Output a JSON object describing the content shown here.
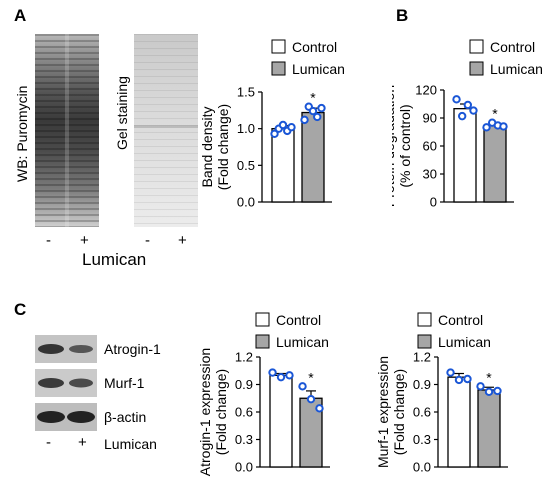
{
  "panels": {
    "A": {
      "letter": "A",
      "blot_label": "WB: Puromycin",
      "gel_label": "Gel staining",
      "lane_minus": "-",
      "lane_plus": "+",
      "treatment": "Lumican"
    },
    "B": {
      "letter": "B"
    },
    "C": {
      "letter": "C",
      "blots": [
        "Atrogin-1",
        "Murf-1",
        "β-actin"
      ],
      "lane_minus": "-",
      "lane_plus": "+",
      "treatment": "Lumican"
    }
  },
  "colors": {
    "control": "#ffffff",
    "lumican": "#a6a6a6",
    "points": "#1a56d6",
    "axis": "#000000"
  },
  "chart_data": [
    {
      "id": "band-density",
      "type": "bar",
      "categories": [
        "Control",
        "Lumican"
      ],
      "values": [
        1.0,
        1.22
      ],
      "errors": [
        0.04,
        0.06
      ],
      "points": [
        [
          0.93,
          1.0,
          1.05,
          0.97,
          1.02
        ],
        [
          1.12,
          1.3,
          1.24,
          1.16,
          1.28
        ]
      ],
      "significance": [
        "",
        "*"
      ],
      "ylabel_line1": "Band density",
      "ylabel_line2": "(Fold change)",
      "ylim": [
        0,
        1.5
      ],
      "yticks": [
        "0.0",
        "0.5",
        "1.0",
        "1.5"
      ],
      "legend": [
        "Control",
        "Lumican"
      ]
    },
    {
      "id": "protein-degradation",
      "type": "bar",
      "categories": [
        "Control",
        "Lumican"
      ],
      "values": [
        100,
        82
      ],
      "errors": [
        5,
        2
      ],
      "points": [
        [
          110,
          92,
          104,
          98
        ],
        [
          80,
          85,
          82,
          81
        ]
      ],
      "significance": [
        "",
        "*"
      ],
      "ylabel_line1": "Protein degradation",
      "ylabel_line2": "(% of control)",
      "ylim": [
        0,
        120
      ],
      "yticks": [
        "0",
        "30",
        "60",
        "90",
        "120"
      ],
      "legend": [
        "Control",
        "Lumican"
      ]
    },
    {
      "id": "atrogin-expression",
      "type": "bar",
      "categories": [
        "Control",
        "Lumican"
      ],
      "values": [
        1.0,
        0.75
      ],
      "errors": [
        0.02,
        0.08
      ],
      "points": [
        [
          1.03,
          0.98,
          1.0
        ],
        [
          0.88,
          0.74,
          0.64
        ]
      ],
      "significance": [
        "",
        "*"
      ],
      "ylabel_line1": "Atrogin-1 expression",
      "ylabel_line2": "(Fold change)",
      "ylim": [
        0,
        1.2
      ],
      "yticks": [
        "0.0",
        "0.3",
        "0.6",
        "0.9",
        "1.2"
      ],
      "legend": [
        "Control",
        "Lumican"
      ]
    },
    {
      "id": "murf-expression",
      "type": "bar",
      "categories": [
        "Control",
        "Lumican"
      ],
      "values": [
        0.98,
        0.84
      ],
      "errors": [
        0.04,
        0.03
      ],
      "points": [
        [
          1.03,
          0.95,
          0.96
        ],
        [
          0.88,
          0.82,
          0.83
        ]
      ],
      "significance": [
        "",
        "*"
      ],
      "ylabel_line1": "Murf-1 expression",
      "ylabel_line2": "(Fold change)",
      "ylim": [
        0,
        1.2
      ],
      "yticks": [
        "0.0",
        "0.3",
        "0.6",
        "0.9",
        "1.2"
      ],
      "legend": [
        "Control",
        "Lumican"
      ]
    }
  ]
}
